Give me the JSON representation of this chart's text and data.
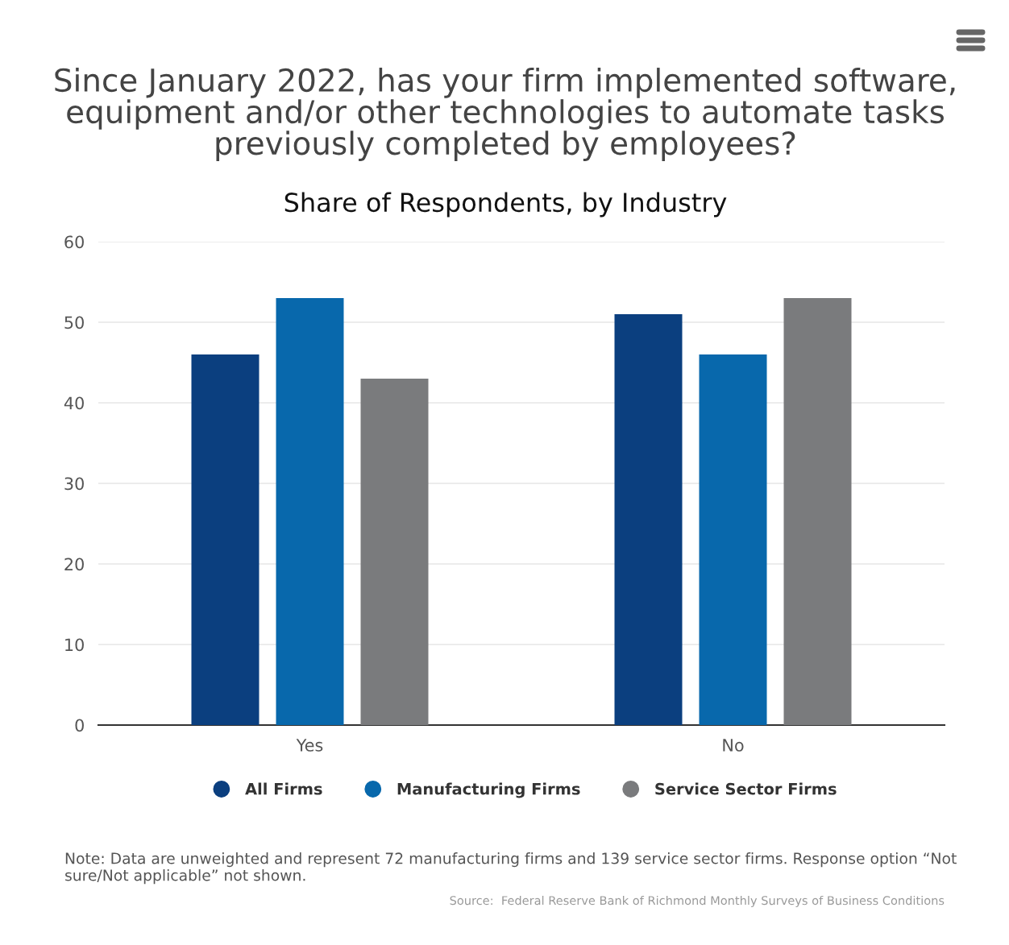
{
  "chart_data": {
    "type": "bar",
    "title": "Since January 2022, has your firm implemented software, equipment and/or other technologies to automate tasks previously completed by employees?",
    "subtitle": "Share of Respondents, by Industry",
    "categories": [
      "Yes",
      "No"
    ],
    "series": [
      {
        "name": "All Firms",
        "color": "#0b3f7f",
        "values": [
          46,
          51
        ]
      },
      {
        "name": "Manufacturing Firms",
        "color": "#0868ac",
        "values": [
          53,
          46
        ]
      },
      {
        "name": "Service Sector Firms",
        "color": "#7a7b7d",
        "values": [
          43,
          53
        ]
      }
    ],
    "ylim": [
      0,
      60
    ],
    "yticks": [
      0,
      10,
      20,
      30,
      40,
      50,
      60
    ],
    "grid": "y",
    "legend": "bottom",
    "marker": "circle",
    "annotations": [
      "Note: Data are unweighted and represent 72 manufacturing firms and 139 service sector firms. Response option “Not sure/Not applicable” not shown.",
      "Source:  Federal Reserve Bank of Richmond Monthly Surveys of Business Conditions"
    ]
  }
}
